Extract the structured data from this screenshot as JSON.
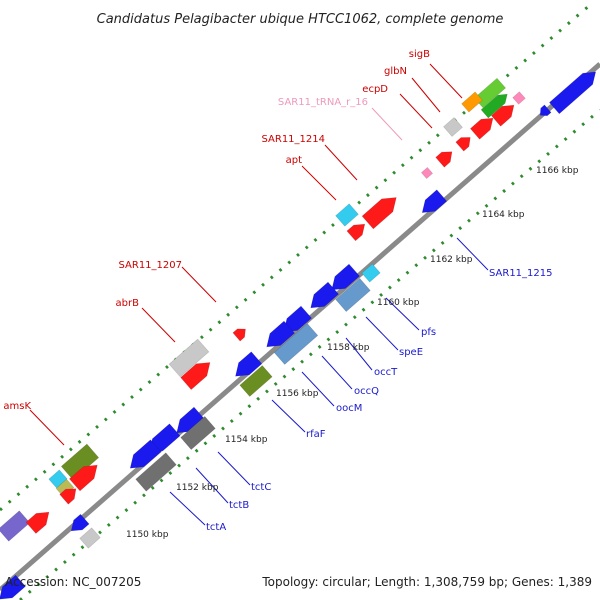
{
  "title": "Candidatus Pelagibacter ubique HTCC1062, complete genome",
  "footer": {
    "accession": "Accession: NC_007205",
    "summary": "Topology: circular; Length: 1,308,759 bp; Genes: 1,389"
  },
  "colors": {
    "axis": "#8a8a8a",
    "tick_dots": "#2e8b2e",
    "top_strand_labels": "#cc0000",
    "bottom_strand_labels": "#1a1acc",
    "rna_label": "#ee99bb"
  },
  "ticks": [
    "1150 kbp",
    "1152 kbp",
    "1154 kbp",
    "1156 kbp",
    "1158 kbp",
    "1160 kbp",
    "1162 kbp",
    "1164 kbp",
    "1166 kbp"
  ],
  "top_labels": [
    {
      "name": "sigB"
    },
    {
      "name": "glbN"
    },
    {
      "name": "ecpD"
    },
    {
      "name": "SAR11_tRNA_r_16"
    },
    {
      "name": "SAR11_1214"
    },
    {
      "name": "apt"
    },
    {
      "name": "SAR11_1207"
    },
    {
      "name": "abrB"
    },
    {
      "name": "amsK"
    }
  ],
  "bottom_labels": [
    {
      "name": "SAR11_1215"
    },
    {
      "name": "pfs"
    },
    {
      "name": "speE"
    },
    {
      "name": "occT"
    },
    {
      "name": "occQ"
    },
    {
      "name": "oocM"
    },
    {
      "name": "rfaF"
    },
    {
      "name": "tctC"
    },
    {
      "name": "tctB"
    },
    {
      "name": "tctA"
    }
  ]
}
